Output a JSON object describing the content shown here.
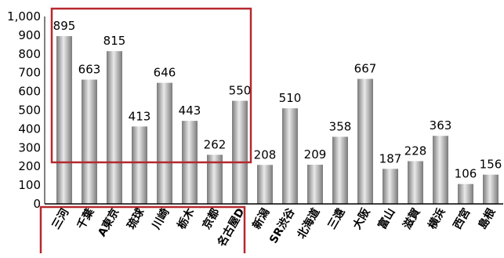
{
  "chart_data": {
    "type": "bar",
    "title": "",
    "xlabel": "",
    "ylabel": "",
    "ylim": [
      0,
      1000
    ],
    "yticks": [
      0,
      100,
      200,
      300,
      400,
      500,
      600,
      700,
      800,
      900,
      1000
    ],
    "ytick_labels": [
      "0",
      "100",
      "200",
      "300",
      "400",
      "500",
      "600",
      "700",
      "800",
      "900",
      "1,000"
    ],
    "grid": false,
    "categories": [
      "三河",
      "千葉",
      "A東京",
      "琉球",
      "川崎",
      "栃木",
      "京都",
      "名古屋D",
      "新潟",
      "SR渋谷",
      "北海道",
      "三遠",
      "大阪",
      "富山",
      "滋賀",
      "横浜",
      "西宮",
      "島根"
    ],
    "values": [
      895,
      663,
      815,
      413,
      646,
      443,
      262,
      550,
      208,
      510,
      209,
      358,
      667,
      187,
      228,
      363,
      106,
      156
    ],
    "data_labels": [
      "895",
      "663",
      "815",
      "413",
      "646",
      "443",
      "262",
      "550",
      "208",
      "510",
      "209",
      "358",
      "667",
      "187",
      "228",
      "363",
      "106",
      "156"
    ],
    "highlight": {
      "first_category": "三河",
      "last_category": "名古屋D",
      "color": "#b5282e"
    },
    "bar_gradient": [
      "#7a7a7a",
      "#e9e9e9",
      "#7a7a7a"
    ],
    "axis_color": "#000000"
  }
}
